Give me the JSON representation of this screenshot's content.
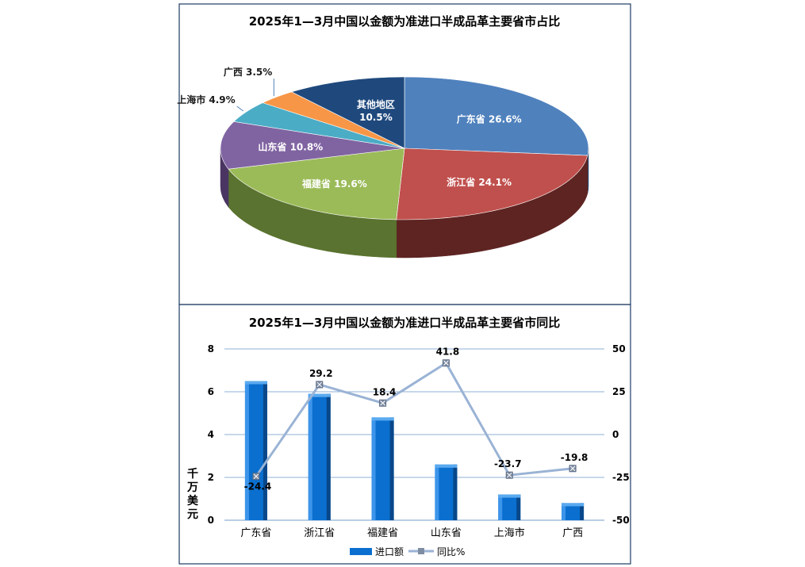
{
  "chart_data": [
    {
      "type": "pie",
      "title": "2025年1—3月中国以金额为准进口半成品革主要省市占比",
      "slices": [
        {
          "label": "广东省",
          "value": 26.6,
          "color": "#4f81bd",
          "side": "#24456e"
        },
        {
          "label": "浙江省",
          "value": 24.1,
          "color": "#c0504d",
          "side": "#5e2422"
        },
        {
          "label": "福建省",
          "value": 19.6,
          "color": "#9bbb59",
          "side": "#5a7330"
        },
        {
          "label": "山东省",
          "value": 10.8,
          "color": "#8064a2",
          "side": "#4a3562"
        },
        {
          "label": "上海市",
          "value": 4.9,
          "color": "#4bacc6",
          "side": "#256b7e"
        },
        {
          "label": "广西",
          "value": 3.5,
          "color": "#f79646",
          "side": "#9c5617"
        },
        {
          "label": "其他地区",
          "value": 10.5,
          "color": "#1f497d",
          "side": "#10284a"
        }
      ]
    },
    {
      "type": "bar",
      "title": "2025年1—3月中国以金额为准进口半成品革主要省市同比",
      "categories": [
        "广东省",
        "浙江省",
        "福建省",
        "山东省",
        "上海市",
        "广西"
      ],
      "series": [
        {
          "name": "进口额",
          "type": "bar",
          "axis": "left",
          "values": [
            6.5,
            5.9,
            4.8,
            2.6,
            1.2,
            0.8
          ],
          "color": "#0a6fcf"
        },
        {
          "name": "同比%",
          "type": "line",
          "axis": "right",
          "values": [
            -24.4,
            29.2,
            18.4,
            41.8,
            -23.7,
            -19.8
          ],
          "color": "#9ab3d5"
        }
      ],
      "ylabel": "千万美元",
      "ylim": [
        0,
        8
      ],
      "y_ticks": [
        0,
        2,
        4,
        6,
        8
      ],
      "y2lim": [
        -50,
        50
      ],
      "y2_ticks": [
        -50,
        -25,
        0,
        25,
        50
      ],
      "grid": true,
      "legend": "bottom"
    }
  ]
}
